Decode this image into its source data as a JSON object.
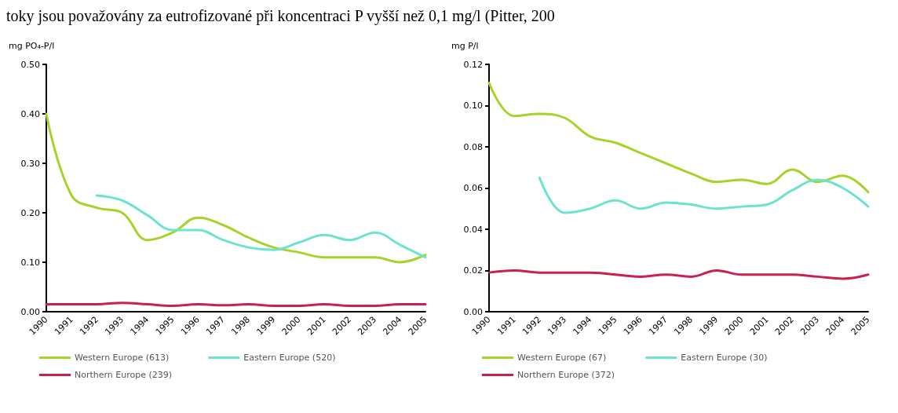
{
  "chart_data": [
    {
      "type": "line",
      "ylabel": "mg PO₄-P/l",
      "annotations": [
        "toky jsou považovány za eutrofizované při koncentraci P vyšší než 0,1 mg/l (Pitter, 200"
      ],
      "categories": [
        "1990",
        "1991",
        "1992",
        "1993",
        "1994",
        "1995",
        "1996",
        "1997",
        "1998",
        "1999",
        "2000",
        "2001",
        "2002",
        "2003",
        "2004",
        "2005"
      ],
      "ylim": [
        0,
        0.5
      ],
      "yticks": [
        {
          "value": 0,
          "label": "0.00"
        },
        {
          "value": 0.1,
          "label": "0.10"
        },
        {
          "value": 0.2,
          "label": "0.20"
        },
        {
          "value": 0.3,
          "label": "0.30"
        },
        {
          "value": 0.4,
          "label": "0.40"
        },
        {
          "value": 0.5,
          "label": "0.50"
        }
      ],
      "grid": false,
      "legend": "bottom",
      "marker": "none",
      "line_style": "solid",
      "series": [
        {
          "name": "Western Europe (613)",
          "color": "#a6d32a",
          "values": [
            0.4,
            0.235,
            0.21,
            0.2,
            0.145,
            0.16,
            0.19,
            0.175,
            0.15,
            0.13,
            0.12,
            0.11,
            0.11,
            0.11,
            0.1,
            0.115
          ]
        },
        {
          "name": "Eastern Europe (520)",
          "color": "#6ce3cf",
          "values": [
            null,
            null,
            0.235,
            0.225,
            0.195,
            0.165,
            0.165,
            0.145,
            0.13,
            0.125,
            0.14,
            0.155,
            0.145,
            0.16,
            0.135,
            0.11
          ]
        },
        {
          "name": "Northern Europe (239)",
          "color": "#cc1f4f",
          "values": [
            0.015,
            0.015,
            0.015,
            0.018,
            0.015,
            0.012,
            0.015,
            0.013,
            0.015,
            0.012,
            0.012,
            0.015,
            0.012,
            0.012,
            0.015,
            0.015
          ]
        }
      ]
    },
    {
      "type": "line",
      "ylabel": "mg P/l",
      "categories": [
        "1990",
        "1991",
        "1992",
        "1993",
        "1994",
        "1995",
        "1996",
        "1997",
        "1998",
        "1999",
        "2000",
        "2001",
        "2002",
        "2003",
        "2004",
        "2005"
      ],
      "ylim": [
        0,
        0.12
      ],
      "yticks": [
        {
          "value": 0,
          "label": "0.00"
        },
        {
          "value": 0.02,
          "label": "0.02"
        },
        {
          "value": 0.04,
          "label": "0.04"
        },
        {
          "value": 0.06,
          "label": "0.06"
        },
        {
          "value": 0.08,
          "label": "0.08"
        },
        {
          "value": 0.1,
          "label": "0.10"
        },
        {
          "value": 0.12,
          "label": "0.12"
        }
      ],
      "grid": false,
      "legend": "bottom",
      "marker": "none",
      "line_style": "solid",
      "series": [
        {
          "name": "Western Europe (67)",
          "color": "#a6d32a",
          "values": [
            0.111,
            0.095,
            0.096,
            0.094,
            0.085,
            0.082,
            0.077,
            0.072,
            0.067,
            0.063,
            0.064,
            0.062,
            0.069,
            0.063,
            0.066,
            0.058
          ]
        },
        {
          "name": "Eastern Europe (30)",
          "color": "#6ce3cf",
          "values": [
            null,
            null,
            0.065,
            0.048,
            0.05,
            0.054,
            0.05,
            0.053,
            0.052,
            0.05,
            0.051,
            0.052,
            0.059,
            0.064,
            0.06,
            0.051
          ]
        },
        {
          "name": "Northern Europe (372)",
          "color": "#cc1f4f",
          "values": [
            0.019,
            0.02,
            0.019,
            0.019,
            0.019,
            0.018,
            0.017,
            0.018,
            0.017,
            0.02,
            0.018,
            0.018,
            0.018,
            0.017,
            0.016,
            0.018
          ]
        }
      ]
    }
  ]
}
